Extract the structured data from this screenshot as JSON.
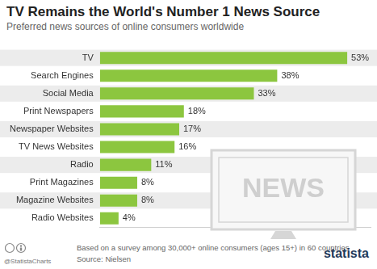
{
  "chart_data": {
    "type": "bar",
    "title": "TV Remains the World's Number 1 News Source",
    "subtitle": "Preferred news sources of online consumers worldwide",
    "categories": [
      "TV",
      "Search Engines",
      "Social Media",
      "Print Newspapers",
      "Newspaper Websites",
      "TV News Websites",
      "Radio",
      "Print Magazines",
      "Magazine Websites",
      "Radio Websites"
    ],
    "values": [
      53,
      38,
      33,
      18,
      17,
      16,
      11,
      8,
      8,
      4
    ],
    "value_labels": [
      "53%",
      "38%",
      "33%",
      "18%",
      "17%",
      "16%",
      "11%",
      "8%",
      "8%",
      "4%"
    ],
    "color": "#8cc63f",
    "orientation": "horizontal",
    "data_labels": true,
    "tick_labels": "y",
    "grid": false,
    "xlim": [
      0,
      58
    ],
    "annotations": [
      "NEWS"
    ],
    "note": "Based on a survey among 30,000+ online consumers (ages 15+) in 60 countries",
    "source": "Source: Nielsen",
    "credit": "@StatistaCharts",
    "brand": "statista"
  }
}
